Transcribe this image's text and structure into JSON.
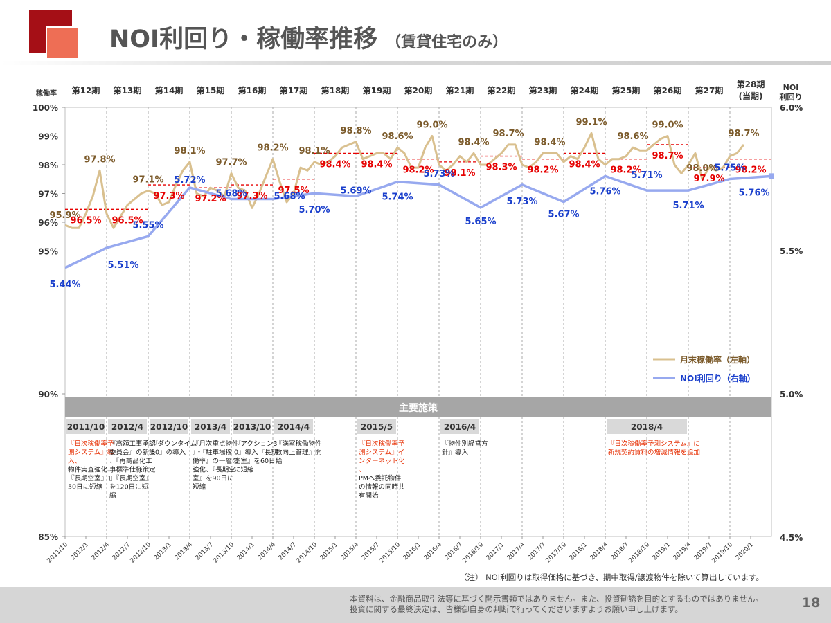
{
  "header": {
    "title": "NOI利回り・稼働率推移",
    "subtitle": "（賃貸住宅のみ）"
  },
  "colors": {
    "occupancy_line": "#d9c08f",
    "noi_line": "#97a9ef",
    "occupancy_label": "#7b5a2a",
    "period_avg": "#e60000",
    "noi_label": "#1a3fcc",
    "measures_bar": "#a6a6a6",
    "date_box": "#d9d9d9",
    "measure_red": "#e62d00",
    "title_deco": "#a50f16"
  },
  "chart_data": {
    "type": "line",
    "left_axis": {
      "label": "稼働率",
      "ticks": [
        "100%",
        "99%",
        "98%",
        "97%",
        "96%",
        "95%",
        "90%",
        "85%"
      ]
    },
    "right_axis": {
      "label_line1": "NOI",
      "label_line2": "利回り",
      "ticks": [
        "6.0%",
        "5.5%",
        "5.0%",
        "4.5%"
      ]
    },
    "x_ticks": [
      "2011/10",
      "2012/1",
      "2012/4",
      "2012/7",
      "2012/10",
      "2013/1",
      "2013/4",
      "2013/7",
      "2013/10",
      "2014/1",
      "2014/4",
      "2014/7",
      "2014/10",
      "2015/1",
      "2015/4",
      "2015/7",
      "2015/10",
      "2016/1",
      "2016/4",
      "2016/7",
      "2016/10",
      "2017/1",
      "2017/4",
      "2017/7",
      "2017/10",
      "2018/1",
      "2018/4",
      "2018/7",
      "2018/10",
      "2019/1",
      "2019/4",
      "2019/7",
      "2019/10",
      "2020/1"
    ],
    "periods": [
      "第12期",
      "第13期",
      "第14期",
      "第15期",
      "第16期",
      "第17期",
      "第18期",
      "第19期",
      "第20期",
      "第21期",
      "第22期",
      "第23期",
      "第24期",
      "第25期",
      "第26期",
      "第27期",
      "第28期",
      "NOI"
    ],
    "period_28_sub": "(当期)",
    "legend": [
      {
        "name": "月末稼働率（左軸）"
      },
      {
        "name": "NOI利回り（右軸）"
      }
    ],
    "occupancy_monthly": [
      95.9,
      95.8,
      95.8,
      96.3,
      96.9,
      97.8,
      96.3,
      95.8,
      96.2,
      96.6,
      96.8,
      97.0,
      97.1,
      97.0,
      96.6,
      96.7,
      97.3,
      97.8,
      98.1,
      97.0,
      96.9,
      97.2,
      97.1,
      96.9,
      97.7,
      97.2,
      97.1,
      96.5,
      97.0,
      97.6,
      98.2,
      97.4,
      96.7,
      97.0,
      97.9,
      97.8,
      98.1,
      98.0,
      98.1,
      98.3,
      98.6,
      98.7,
      98.8,
      98.2,
      98.3,
      98.4,
      98.4,
      98.2,
      98.6,
      98.4,
      97.9,
      97.9,
      98.6,
      99.0,
      98.0,
      97.8,
      98.0,
      98.3,
      98.1,
      98.4,
      98.0,
      98.0,
      98.2,
      98.4,
      98.7,
      98.7,
      98.0,
      97.9,
      98.1,
      98.4,
      98.4,
      98.4,
      98.1,
      98.3,
      98.2,
      98.6,
      99.1,
      98.2,
      98.0,
      98.2,
      98.2,
      98.3,
      98.6,
      98.5,
      98.5,
      98.7,
      98.9,
      99.0,
      98.0,
      97.7,
      98.0,
      98.4,
      97.5,
      97.9,
      97.8,
      97.9,
      98.3,
      98.4,
      98.7
    ],
    "period_avg_occupancy": [
      "96.5%",
      "96.5%",
      "97.3%",
      "97.2%",
      "97.3%",
      "97.5%",
      "98.4%",
      "98.4%",
      "98.2%",
      "98.1%",
      "98.3%",
      "98.2%",
      "98.4%",
      "98.2%",
      "98.7%",
      "97.9%",
      "98.2%"
    ],
    "period_avg_values": [
      96.45,
      96.45,
      97.3,
      97.2,
      97.3,
      97.5,
      98.4,
      98.4,
      98.2,
      98.1,
      98.3,
      98.2,
      98.4,
      98.2,
      98.7,
      97.9,
      98.2
    ],
    "period_high_occupancy": [
      "97.8%",
      "97.1%",
      "98.1%",
      "97.7%",
      "98.2%",
      "98.1%",
      "98.8%",
      "98.6%",
      "99.0%",
      "98.4%",
      "98.7%",
      "98.4%",
      "99.1%",
      "98.6%",
      "99.0%",
      "98.0%",
      "98.7%"
    ],
    "first_month_label": "95.9%",
    "noi_yield": [
      5.44,
      5.51,
      5.55,
      5.72,
      5.68,
      5.68,
      5.7,
      5.69,
      5.74,
      5.73,
      5.65,
      5.73,
      5.67,
      5.76,
      5.71,
      5.71,
      5.75,
      5.76
    ],
    "noi_yield_labels": [
      "5.44%",
      "5.51%",
      "5.55%",
      "5.72%",
      "5.68%",
      "5.68%",
      "5.70%",
      "5.69%",
      "5.74%",
      "5.73%",
      "5.65%",
      "5.73%",
      "5.67%",
      "5.76%",
      "5.71%",
      "5.71%",
      "5.75%",
      "5.76%"
    ]
  },
  "measures": {
    "heading": "主要施策",
    "items": [
      {
        "date": "2011/10",
        "text": "『日次稼働率予測システム』導入、",
        "text2": "物件実査強化、『長期空室』150日に短縮"
      },
      {
        "date": "2012/4",
        "text": "",
        "text2": "『高額工事承認委員会』の新設、『再商品化工事標準仕様策定』『長期空室』を120日に短縮"
      },
      {
        "date": "2012/10",
        "text": "",
        "text2": "『ダウンタイム60』の導入"
      },
      {
        "date": "2013/4",
        "text": "",
        "text2": "『月次重点物件』・『駐車場稼働率』の一層の強化、『長期空室』を90日に短縮"
      },
      {
        "date": "2013/10",
        "text": "",
        "text2": "『アクション30』導入『長期空室』を60日に短縮"
      },
      {
        "date": "2014/4",
        "text": "",
        "text2": "『満室稼働物件数向上管理』開始"
      },
      {
        "date": "2015/5",
        "text": "『日次稼働率予測システム』インターネット化、",
        "text2": "PMへ委託物件の情報の同時共有開始"
      },
      {
        "date": "2016/4",
        "text": "",
        "text2": "『物件別経営方針』導入"
      },
      {
        "date": "2018/4",
        "text": "『日次稼働率予測システム』に新規契約賃料の増減情報を追加",
        "text2": ""
      }
    ]
  },
  "note": "（注） NOI利回りは取得価格に基づき、期中取得/譲渡物件を除いて算出しています。",
  "disclaimer_line1": "本資料は、金融商品取引法等に基づく開示書類ではありません。また、投資勧誘を目的とするものではありません。",
  "disclaimer_line2": "投資に関する最終決定は、皆様御自身の判断で行ってくださいますようお願い申し上げます。",
  "page_number": "18"
}
